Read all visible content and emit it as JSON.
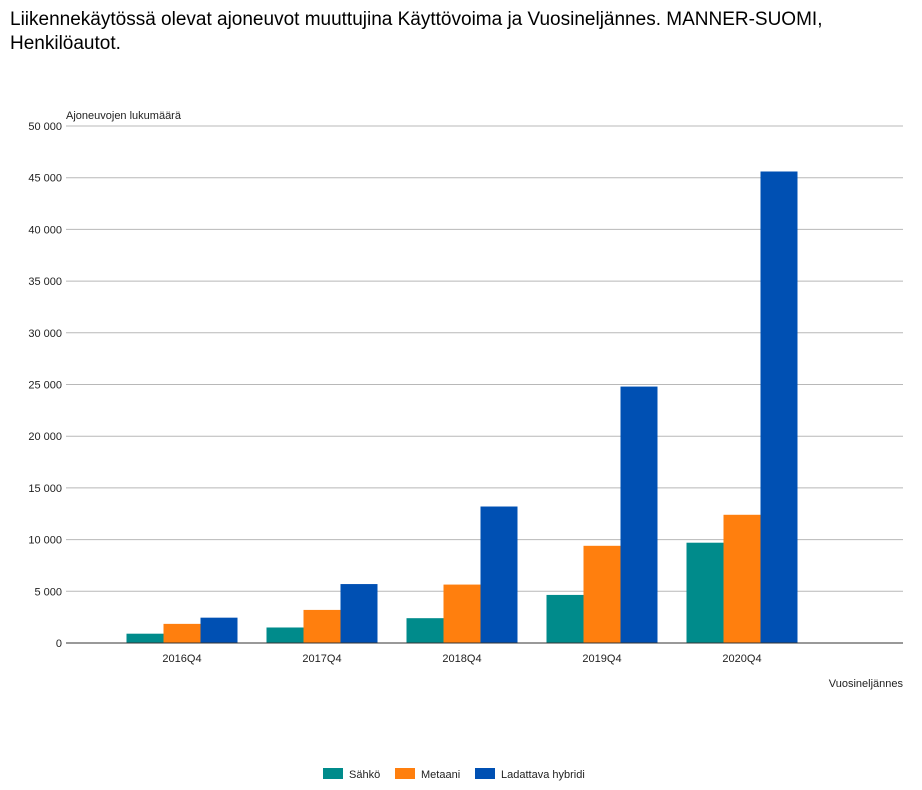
{
  "chart_data": {
    "type": "bar",
    "title": "Liikennekäytössä olevat ajoneuvot muuttujina Käyttövoima ja Vuosineljännes. MANNER-SUOMI, Henkilöautot.",
    "ylabel": "Ajoneuvojen lukumäärä",
    "xlabel": "Vuosineljännes",
    "ylim": [
      0,
      50000
    ],
    "y_ticks": [
      0,
      5000,
      10000,
      15000,
      20000,
      25000,
      30000,
      35000,
      40000,
      45000,
      50000
    ],
    "y_tick_labels": [
      "0",
      "5 000",
      "10 000",
      "15 000",
      "20 000",
      "25 000",
      "30 000",
      "35 000",
      "40 000",
      "45 000",
      "50 000"
    ],
    "grid": true,
    "legend_position": "bottom",
    "categories": [
      "2016Q4",
      "2017Q4",
      "2018Q4",
      "2019Q4",
      "2020Q4"
    ],
    "series": [
      {
        "name": "Sähkö",
        "color": "#008b8b",
        "values": [
          900,
          1500,
          2400,
          4650,
          9700
        ]
      },
      {
        "name": "Metaani",
        "color": "#ff7f0e",
        "values": [
          1850,
          3200,
          5650,
          9400,
          12400
        ]
      },
      {
        "name": "Ladattava hybridi",
        "color": "#0050b3",
        "values": [
          2450,
          5700,
          13200,
          24800,
          45600
        ]
      }
    ]
  }
}
